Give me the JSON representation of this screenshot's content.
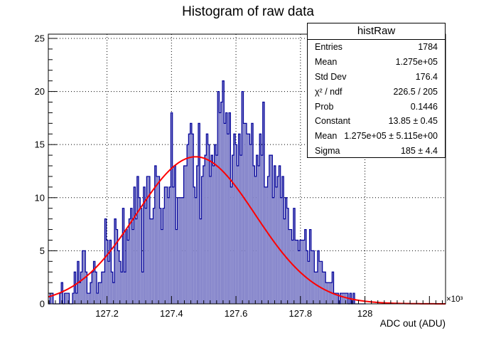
{
  "chart_data": {
    "type": "bar",
    "title": "Histogram of raw data",
    "xlabel": "ADC out (ADU)",
    "x_multiplier": "×10³",
    "xlim": [
      127.018,
      128.25
    ],
    "ylim": [
      0,
      25.4
    ],
    "x_ticks": [
      "127.2",
      "127.4",
      "127.6",
      "127.8",
      "128"
    ],
    "x_tick_values": [
      127.2,
      127.4,
      127.6,
      127.8,
      128.0
    ],
    "y_ticks": [
      "0",
      "5",
      "10",
      "15",
      "20",
      "25"
    ],
    "y_tick_values": [
      0,
      5,
      10,
      15,
      20,
      25
    ],
    "grid": true,
    "histogram": {
      "name": "histRaw",
      "color": "#000099",
      "fill": "#8888cc",
      "bin_start": 127.018,
      "bin_width": 0.005,
      "counts": [
        0,
        1,
        1,
        0,
        0,
        0,
        0,
        1,
        2,
        0,
        1,
        1,
        1,
        0,
        0,
        1,
        3,
        1,
        4,
        2,
        3,
        5,
        5,
        3,
        1,
        1,
        2,
        3,
        4,
        3,
        1,
        2,
        2,
        3,
        3,
        8,
        6,
        4,
        6,
        3,
        2,
        8,
        7,
        5,
        4,
        3,
        9,
        3,
        7,
        6,
        8,
        9,
        7,
        11,
        8,
        12,
        10,
        9,
        3,
        11,
        9,
        12,
        12,
        8,
        8,
        9,
        13,
        12,
        12,
        9,
        7,
        9,
        11,
        11,
        10,
        11,
        18,
        11,
        13,
        7,
        10,
        10,
        10,
        10,
        13,
        13,
        15,
        16,
        17,
        16,
        11,
        10,
        13,
        17,
        8,
        12,
        13,
        14,
        16,
        15,
        12,
        14,
        13,
        15,
        14,
        20,
        18,
        19,
        21,
        17,
        18,
        16,
        18,
        11,
        14,
        16,
        15,
        13,
        16,
        14,
        20,
        17,
        17,
        16,
        16,
        15,
        17,
        13,
        12,
        14,
        13,
        16,
        14,
        19,
        11,
        11,
        12,
        14,
        14,
        10,
        13,
        11,
        12,
        13,
        10,
        12,
        8,
        10,
        9,
        7,
        7,
        6,
        9,
        6,
        6,
        5,
        6,
        6,
        6,
        7,
        5,
        4,
        7,
        5,
        5,
        3,
        3,
        5,
        4,
        4,
        3,
        3,
        2,
        2,
        2,
        2,
        3,
        1,
        1,
        1,
        0,
        1,
        1,
        1,
        1,
        1,
        0,
        1,
        0,
        1,
        0,
        0,
        0,
        0,
        0,
        0,
        0
      ]
    },
    "fit": {
      "name": "gaus",
      "color": "#ff0000",
      "constant": 13.85,
      "mean": 127.475,
      "sigma": 0.185
    },
    "stats": {
      "title": "histRaw",
      "rows": [
        {
          "label": "Entries",
          "value": "1784"
        },
        {
          "label": "Mean",
          "value": "1.275e+05"
        },
        {
          "label": "Std Dev",
          "value": "176.4"
        },
        {
          "label": "χ² / ndf",
          "value": "226.5 / 205"
        },
        {
          "label": "Prob",
          "value": "0.1446"
        },
        {
          "label": "Constant",
          "value": "13.85 ± 0.45"
        },
        {
          "label": "Mean",
          "value": "1.275e+05 ± 5.115e+00"
        },
        {
          "label": "Sigma",
          "value": "185 ± 4.4"
        }
      ]
    }
  }
}
